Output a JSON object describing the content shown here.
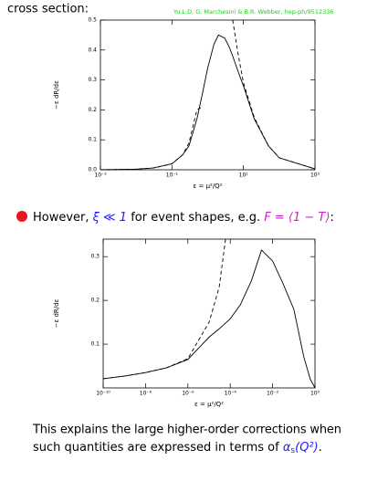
{
  "header": {
    "text": "cross section:",
    "credit": "Yu.L.D, G. Marchesini & B.R. Webber, hep-ph/9512336"
  },
  "chart_data": [
    {
      "type": "line",
      "xscale": "log",
      "xlabel": "ε = μ²/Q²",
      "ylabel": "−ε dR/dε",
      "x": [
        0.001,
        0.01,
        0.03,
        0.1,
        0.2,
        0.3,
        0.5,
        0.7,
        1,
        1.5,
        2,
        3,
        4,
        5,
        7,
        10,
        20,
        50,
        100,
        1000
      ],
      "series": [
        {
          "color": "#000000",
          "line_style": "solid",
          "values": [
            0.0,
            0.002,
            0.006,
            0.02,
            0.05,
            0.08,
            0.17,
            0.25,
            0.34,
            0.42,
            0.45,
            0.44,
            0.41,
            0.38,
            0.33,
            0.28,
            0.17,
            0.08,
            0.04,
            0.003
          ]
        },
        {
          "color": "#000000",
          "line_style": "dashed",
          "values": [
            0.0,
            0.002,
            0.006,
            0.02,
            0.05,
            0.09,
            0.2,
            0.21,
            null,
            null,
            null,
            null,
            null,
            0.5,
            0.39,
            0.29,
            0.175,
            0.08,
            0.04,
            0.003
          ]
        }
      ],
      "xlim": [
        0.001,
        1000
      ],
      "xticks": [
        {
          "value": 0.001,
          "label": "10⁻³"
        },
        {
          "value": 0.1,
          "label": "10⁻¹"
        },
        {
          "value": 10,
          "label": "10¹"
        },
        {
          "value": 1000,
          "label": "10³"
        }
      ],
      "ylim": [
        0,
        0.5
      ],
      "yticks": [
        {
          "value": 0,
          "label": "0.0"
        },
        0.1,
        0.2,
        0.3,
        0.4,
        0.5
      ]
    },
    {
      "type": "line",
      "xscale": "log",
      "xlabel": "ε = μ²/Q²",
      "ylabel": "−ε dR/dε",
      "x": [
        1e-10,
        1e-09,
        1e-08,
        1e-07,
        1e-06,
        1e-05,
        3e-05,
        6e-05,
        0.0001,
        0.0003,
        0.001,
        0.003,
        0.01,
        0.03,
        0.1,
        0.3,
        0.6,
        1
      ],
      "series": [
        {
          "color": "#000000",
          "line_style": "solid",
          "values": [
            0.021,
            0.027,
            0.035,
            0.046,
            0.065,
            0.116,
            0.135,
            0.148,
            0.158,
            0.19,
            0.245,
            0.315,
            0.29,
            0.24,
            0.18,
            0.07,
            0.02,
            0
          ]
        },
        {
          "color": "#000000",
          "line_style": "dashed",
          "values": [
            0.021,
            0.027,
            0.035,
            0.046,
            0.067,
            0.15,
            0.23,
            0.34,
            null,
            null,
            null,
            null,
            null,
            null,
            null,
            null,
            null,
            null
          ]
        }
      ],
      "xlim": [
        1e-10,
        1
      ],
      "xticks": [
        {
          "value": 1e-10,
          "label": "10⁻¹⁰"
        },
        {
          "value": 1e-08,
          "label": "10⁻⁸"
        },
        {
          "value": 1e-06,
          "label": "10⁻⁶"
        },
        {
          "value": 0.0001,
          "label": "10⁻⁴"
        },
        {
          "value": 0.01,
          "label": "10⁻²"
        },
        {
          "value": 1,
          "label": "10⁰"
        }
      ],
      "ylim": [
        0,
        0.34
      ],
      "yticks": [
        0.1,
        0.2,
        0.3
      ]
    }
  ],
  "bullet": {
    "parts": [
      "However, ",
      "ξ ≪ 1",
      " for event shapes, e.g. ",
      "F = ⟨1 − T⟩",
      ":"
    ]
  },
  "footer": {
    "line1": "This explains the large higher-order corrections when",
    "line2": "such quantities are expressed in terms of ",
    "math": [
      "α",
      "s",
      "(Q²)"
    ],
    "end": "."
  }
}
